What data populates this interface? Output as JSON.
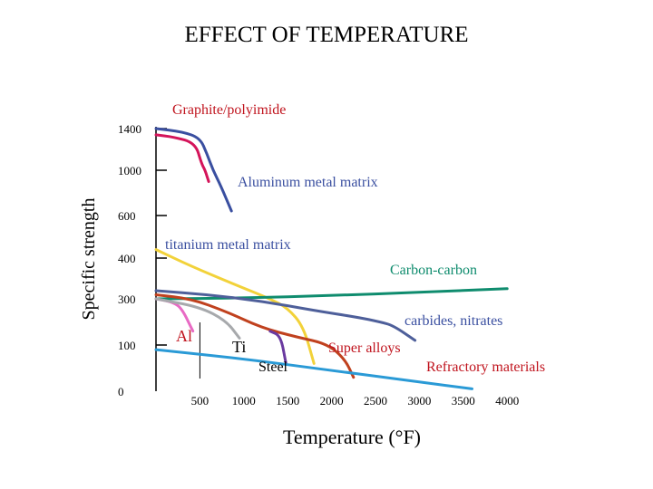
{
  "chart_data": {
    "type": "line",
    "title": "EFFECT OF TEMPERATURE",
    "xlabel": "Temperature (°F)",
    "ylabel": "Specific strength",
    "x_ticks": [
      "500",
      "1000",
      "1500",
      "2000",
      "2500",
      "3000",
      "3500",
      "4000"
    ],
    "x_tick_values": [
      500,
      1000,
      1500,
      2000,
      2500,
      3000,
      3500,
      4000
    ],
    "y_ticks": [
      "1400",
      "1000",
      "600",
      "400",
      "300",
      "100",
      "0"
    ],
    "xlim": [
      0,
      4200
    ],
    "y_scale": "categorical-ticks",
    "series": [
      {
        "name": "Graphite/polyimide",
        "label": "Graphite/polyimide",
        "color": "#d4145a",
        "points": [
          [
            0,
            1340
          ],
          [
            200,
            1320
          ],
          [
            450,
            1260
          ],
          [
            520,
            1060
          ],
          [
            560,
            1000
          ],
          [
            600,
            900
          ]
        ]
      },
      {
        "name": "Aluminum metal matrix",
        "label": "Aluminum metal matrix",
        "color": "#3a4fa0",
        "points": [
          [
            0,
            1400
          ],
          [
            300,
            1370
          ],
          [
            500,
            1310
          ],
          [
            580,
            1160
          ],
          [
            650,
            1000
          ],
          [
            740,
            860
          ],
          [
            860,
            640
          ]
        ]
      },
      {
        "name": "titanium metal matrix",
        "label": "titanium metal matrix",
        "color": "#f2d23a",
        "points": [
          [
            0,
            440
          ],
          [
            400,
            380
          ],
          [
            900,
            335
          ],
          [
            1300,
            300
          ],
          [
            1500,
            260
          ],
          [
            1680,
            180
          ],
          [
            1800,
            60
          ]
        ]
      },
      {
        "name": "Carbon-carbon",
        "label": "Carbon-carbon",
        "color": "#0f8c6e",
        "points": [
          [
            0,
            300
          ],
          [
            1000,
            302
          ],
          [
            2000,
            308
          ],
          [
            3000,
            316
          ],
          [
            4000,
            325
          ]
        ]
      },
      {
        "name": "carbides, nitrates",
        "label": "carbides, nitrates",
        "color": "#4e5f9a",
        "points": [
          [
            0,
            320
          ],
          [
            600,
            310
          ],
          [
            1200,
            290
          ],
          [
            1800,
            250
          ],
          [
            2300,
            220
          ],
          [
            2550,
            200
          ],
          [
            2700,
            185
          ],
          [
            2950,
            120
          ]
        ]
      },
      {
        "name": "Super alloys",
        "label": "Super alloys",
        "color": "#c0411e",
        "points": [
          [
            0,
            310
          ],
          [
            400,
            300
          ],
          [
            800,
            245
          ],
          [
            1200,
            175
          ],
          [
            1600,
            135
          ],
          [
            1950,
            105
          ],
          [
            2150,
            70
          ],
          [
            2250,
            30
          ]
        ]
      },
      {
        "name": "Al",
        "label": "Al",
        "color": "#e86ac4",
        "points": [
          [
            0,
            300
          ],
          [
            200,
            285
          ],
          [
            300,
            255
          ],
          [
            420,
            160
          ]
        ]
      },
      {
        "name": "Ti",
        "label": "Ti",
        "color": "#a7a9ac",
        "points": [
          [
            0,
            300
          ],
          [
            500,
            265
          ],
          [
            800,
            205
          ],
          [
            950,
            130
          ]
        ]
      },
      {
        "name": "Steel",
        "label": "Steel",
        "color": "#6a3aa0",
        "points": [
          [
            1300,
            160
          ],
          [
            1420,
            140
          ],
          [
            1480,
            60
          ]
        ]
      },
      {
        "name": "Refractory materials",
        "label": "Refractory materials",
        "color": "#2a9ad6",
        "points": [
          [
            0,
            90
          ],
          [
            1000,
            70
          ],
          [
            2000,
            45
          ],
          [
            3000,
            20
          ],
          [
            3600,
            5
          ]
        ]
      }
    ]
  }
}
